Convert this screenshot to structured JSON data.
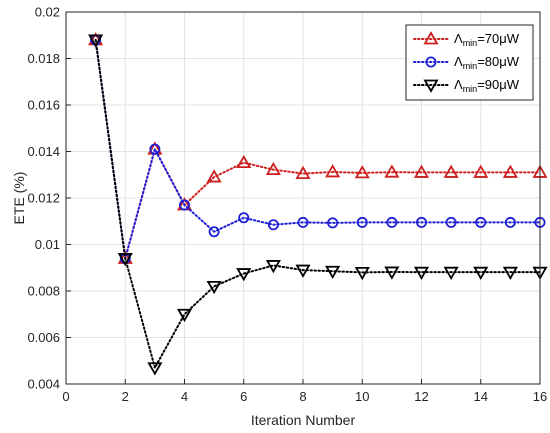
{
  "chart_data": {
    "type": "line",
    "xlabel": "Iteration Number",
    "ylabel": "ETE (%)",
    "xlim": [
      0,
      16
    ],
    "ylim": [
      0.004,
      0.02
    ],
    "xticks": [
      "0",
      "2",
      "4",
      "6",
      "8",
      "10",
      "12",
      "14",
      "16"
    ],
    "yticks": [
      "0.004",
      "0.006",
      "0.008",
      "0.01",
      "0.012",
      "0.014",
      "0.016",
      "0.018",
      "0.02"
    ],
    "grid": true,
    "legend_position": "top-right",
    "x": [
      1,
      2,
      3,
      4,
      5,
      6,
      7,
      8,
      9,
      10,
      11,
      12,
      13,
      14,
      15,
      16
    ],
    "series": [
      {
        "name_main": "Λ",
        "name_sub": "min",
        "name_rest": "=70μW",
        "color": "#cc1f1f",
        "marker": "triangle-up",
        "values": [
          0.0188,
          0.0094,
          0.0141,
          0.0117,
          0.0129,
          0.01352,
          0.01322,
          0.01305,
          0.01312,
          0.01308,
          0.01311,
          0.0131,
          0.0131,
          0.0131,
          0.0131,
          0.0131
        ]
      },
      {
        "name_main": "Λ",
        "name_sub": "min",
        "name_rest": "=80μW",
        "color": "#1f1fd6",
        "marker": "circle",
        "values": [
          0.0188,
          0.0094,
          0.0141,
          0.0117,
          0.01055,
          0.01115,
          0.01085,
          0.01095,
          0.01093,
          0.01095,
          0.01095,
          0.01095,
          0.01095,
          0.01095,
          0.01095,
          0.01095
        ]
      },
      {
        "name_main": "Λ",
        "name_sub": "min",
        "name_rest": "=90μW",
        "color": "#000000",
        "marker": "triangle-down",
        "values": [
          0.0188,
          0.0094,
          0.0047,
          0.007,
          0.0082,
          0.00875,
          0.0091,
          0.0089,
          0.00885,
          0.0088,
          0.00882,
          0.00881,
          0.00881,
          0.00881,
          0.00881,
          0.00881
        ]
      }
    ]
  }
}
